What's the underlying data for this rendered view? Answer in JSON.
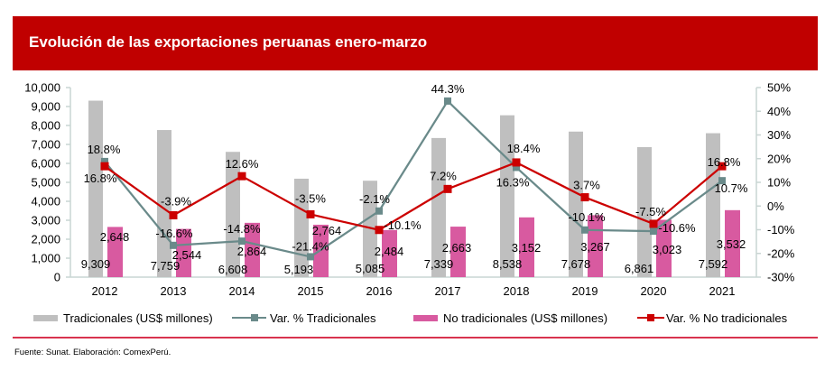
{
  "title": "Evolución de las exportaciones peruanas enero-marzo",
  "footer": {
    "source": "Fuente: Sunat. Elaboración: ComexPerú."
  },
  "colors": {
    "title_bar": "#C00000",
    "tradicionales_bar": "#BFBFBF",
    "no_tradicionales_bar": "#D85AA0",
    "var_tradicionales_line": "#6A8A8A",
    "var_no_tradicionales_line": "#CC0000",
    "axis": "#C9D5D3",
    "footer_rule": "#D9344F"
  },
  "chart_data": {
    "type": "bar",
    "title": "Evolución de las exportaciones peruanas enero-marzo",
    "xlabel": "",
    "ylabel": "",
    "grid": false,
    "legend": "bottom",
    "categories": [
      "2012",
      "2013",
      "2014",
      "2015",
      "2016",
      "2017",
      "2018",
      "2019",
      "2020",
      "2021"
    ],
    "y_left": {
      "range": [
        0,
        10000
      ],
      "ticks": [
        0,
        1000,
        2000,
        3000,
        4000,
        5000,
        6000,
        7000,
        8000,
        9000,
        10000
      ],
      "tick_labels": [
        "0",
        "1,000",
        "2,000",
        "3,000",
        "4,000",
        "5,000",
        "6,000",
        "7,000",
        "8,000",
        "9,000",
        "10,000"
      ]
    },
    "y_right": {
      "range": [
        -30,
        50
      ],
      "ticks": [
        -30,
        -20,
        -10,
        0,
        10,
        20,
        30,
        40,
        50
      ],
      "tick_labels": [
        "-30%",
        "-20%",
        "-10%",
        "0%",
        "10%",
        "20%",
        "30%",
        "40%",
        "50%"
      ]
    },
    "series": [
      {
        "name": "Tradicionales (US$ millones)",
        "type": "bar",
        "axis": "left",
        "values": [
          9309,
          7759,
          6608,
          5193,
          5085,
          7339,
          8538,
          7678,
          6861,
          7592
        ],
        "data_labels": [
          "9,309",
          "7,759",
          "6,608",
          "5,193",
          "5,085",
          "7,339",
          "8,538",
          "7,678",
          "6,861",
          "7,592"
        ]
      },
      {
        "name": "Var. % Tradicionales",
        "type": "line",
        "axis": "right",
        "values": [
          18.8,
          -16.6,
          -14.8,
          -21.4,
          -2.1,
          44.3,
          16.3,
          -10.1,
          -10.6,
          10.7
        ],
        "data_labels": [
          "18.8%",
          "-16.6%",
          "-14.8%",
          "-21.4%",
          "-2.1%",
          "44.3%",
          "16.3%",
          "-10.1%",
          "-10.6%",
          "10.7%"
        ]
      },
      {
        "name": "No tradicionales (US$ millones)",
        "type": "bar",
        "axis": "left",
        "values": [
          2648,
          2544,
          2864,
          2764,
          2484,
          2663,
          3152,
          3267,
          3023,
          3532
        ],
        "data_labels": [
          "2,648",
          "2,544",
          "2,864",
          "2,764",
          "2,484",
          "2,663",
          "3,152",
          "3,267",
          "3,023",
          "3,532"
        ]
      },
      {
        "name": "Var. % No tradicionales",
        "type": "line",
        "axis": "right",
        "values": [
          16.8,
          -3.9,
          12.6,
          -3.5,
          -10.1,
          7.2,
          18.4,
          3.7,
          -7.5,
          16.8
        ],
        "data_labels": [
          "16.8%",
          "-3.9%",
          "12.6%",
          "-3.5%",
          "-10.1%",
          "7.2%",
          "18.4%",
          "3.7%",
          "-7.5%",
          "16.8%"
        ]
      }
    ]
  }
}
